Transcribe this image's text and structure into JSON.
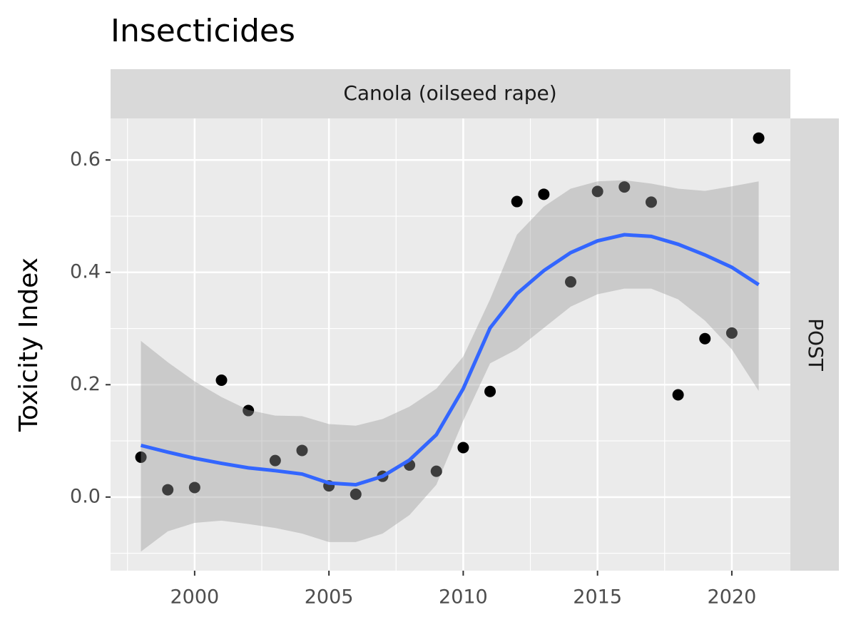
{
  "chart_data": {
    "type": "scatter-smooth",
    "title": "Insecticides",
    "y_label": "Toxicity Index",
    "facet_col": "Canola (oilseed rape)",
    "facet_row": "POST",
    "x": [
      1998,
      1999,
      2000,
      2001,
      2002,
      2003,
      2004,
      2005,
      2006,
      2007,
      2008,
      2009,
      2010,
      2011,
      2012,
      2013,
      2014,
      2015,
      2016,
      2017,
      2018,
      2019,
      2020,
      2021
    ],
    "values": [
      0.071,
      0.013,
      0.017,
      0.208,
      0.154,
      0.065,
      0.083,
      0.02,
      0.005,
      0.037,
      0.057,
      0.046,
      0.088,
      0.188,
      0.526,
      0.539,
      0.383,
      0.544,
      0.552,
      0.525,
      0.182,
      0.282,
      0.292,
      0.639
    ],
    "color": "#000000",
    "smooth": {
      "color": "#3366ff",
      "band_color": "#999999",
      "values": [
        0.092,
        0.08,
        0.069,
        0.06,
        0.052,
        0.047,
        0.041,
        0.025,
        0.022,
        0.037,
        0.066,
        0.111,
        0.193,
        0.301,
        0.362,
        0.403,
        0.435,
        0.456,
        0.467,
        0.464,
        0.45,
        0.431,
        0.409,
        0.378
      ],
      "lower": [
        -0.097,
        -0.061,
        -0.046,
        -0.042,
        -0.048,
        -0.055,
        -0.065,
        -0.08,
        -0.08,
        -0.065,
        -0.032,
        0.022,
        0.136,
        0.238,
        0.263,
        0.301,
        0.339,
        0.361,
        0.371,
        0.371,
        0.352,
        0.314,
        0.263,
        0.189
      ],
      "upper": [
        0.278,
        0.24,
        0.206,
        0.178,
        0.155,
        0.145,
        0.144,
        0.13,
        0.127,
        0.139,
        0.161,
        0.193,
        0.25,
        0.352,
        0.467,
        0.517,
        0.549,
        0.562,
        0.564,
        0.558,
        0.549,
        0.545,
        0.553,
        0.562
      ]
    },
    "xlim": [
      1996.87,
      2022.18
    ],
    "xticks": [
      2000,
      2005,
      2010,
      2015,
      2020
    ],
    "xminor": [
      1997.5,
      2002.5,
      2007.5,
      2012.5,
      2017.5
    ],
    "ylim": [
      -0.131,
      0.674
    ],
    "yticks": [
      {
        "value": 0,
        "label": "0.0"
      },
      0.2,
      0.4,
      0.6
    ],
    "yminor": [
      -0.1,
      0.1,
      0.3,
      0.5
    ],
    "grid": true
  }
}
